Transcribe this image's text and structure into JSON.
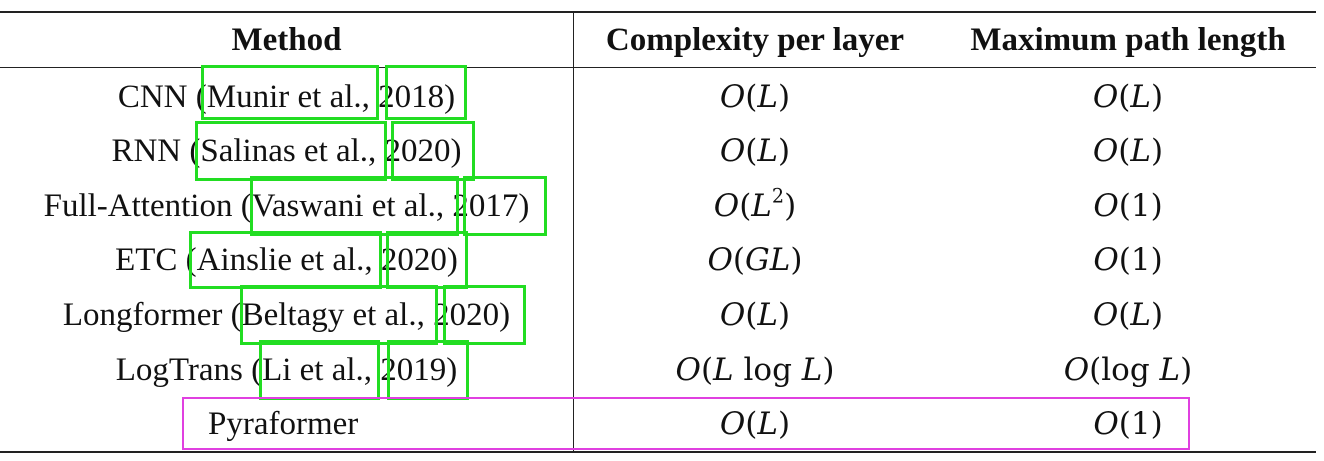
{
  "table": {
    "headers": {
      "method": "Method",
      "complexity": "Complexity per layer",
      "path": "Maximum path length"
    },
    "rows": [
      {
        "method": "CNN (Munir et al., 2018)",
        "complexity": "O(L)",
        "path": "O(L)"
      },
      {
        "method": "RNN (Salinas et al., 2020)",
        "complexity": "O(L)",
        "path": "O(L)"
      },
      {
        "method": "Full-Attention (Vaswani et al., 2017)",
        "complexity": "O(L²)",
        "path": "O(1)"
      },
      {
        "method": "ETC (Ainslie et al., 2020)",
        "complexity": "O(GL)",
        "path": "O(1)"
      },
      {
        "method": "Longformer (Beltagy et al., 2020)",
        "complexity": "O(L)",
        "path": "O(L)"
      },
      {
        "method": "LogTrans (Li et al., 2019)",
        "complexity": "O(L log L)",
        "path": "O(log L)"
      },
      {
        "method": "Pyraformer",
        "complexity": "O(L)",
        "path": "O(1)"
      }
    ]
  },
  "annotation_colors": {
    "citation_boxes": "#22dd22",
    "highlight_row": "#e040e0"
  }
}
